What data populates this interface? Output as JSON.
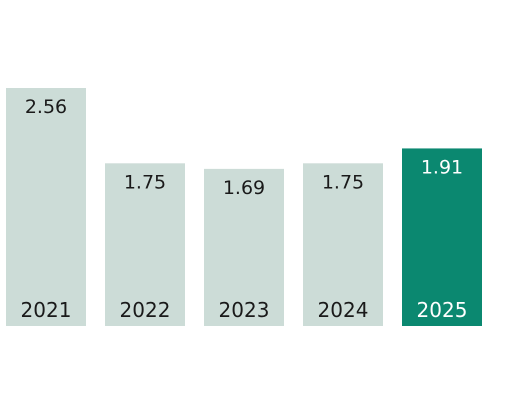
{
  "chart_data": {
    "type": "bar",
    "categories": [
      "2021",
      "2022",
      "2023",
      "2024",
      "2025"
    ],
    "values": [
      2.56,
      1.75,
      1.69,
      1.75,
      1.91
    ],
    "value_labels": [
      "2.56",
      "1.75",
      "1.69",
      "1.75",
      "1.91"
    ],
    "highlight_index": 4,
    "ylim": [
      0,
      2.56
    ],
    "grid": false,
    "legend": "none",
    "title": "",
    "xlabel": "",
    "ylabel": ""
  },
  "colors": {
    "bar": "#ccdcd7",
    "bar_highlight": "#0b8870",
    "text": "#1a1a1a",
    "text_highlight": "#ffffff"
  }
}
